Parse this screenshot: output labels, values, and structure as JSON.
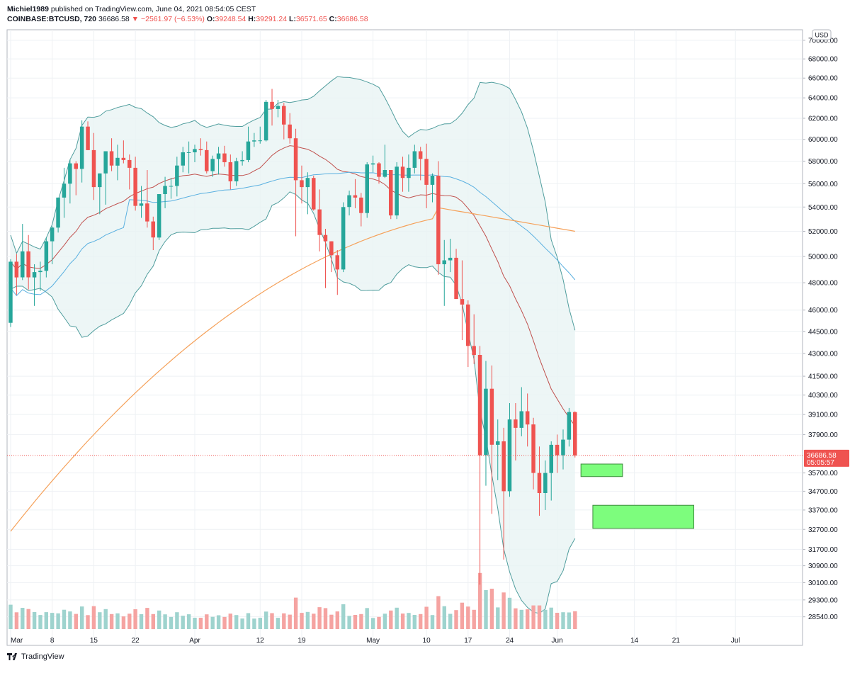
{
  "header": {
    "author": "Michiel1989",
    "published": "published on TradingView.com, June 04, 2021 08:54:05 CEST",
    "symbol": "COINBASE:BTCUSD, 720",
    "last": "36686.58",
    "change": "−2561.97 (−6.53%)",
    "o_label": "O:",
    "o_value": "39248.54",
    "h_label": "H:",
    "h_value": "39291.24",
    "l_label": "L:",
    "l_value": "36571.65",
    "c_label": "C:",
    "c_value": "36686.58"
  },
  "currency_badge": "USD",
  "price_tag": {
    "price": "36686.58",
    "countdown": "05:05:57"
  },
  "branding": "TradingView",
  "colors": {
    "up": "#26a69a",
    "down": "#ef5350",
    "bb": "#4f9d9d",
    "bb_fill": "#e8f4f4",
    "ma_fast": "#c0504d",
    "ma_mid": "#5ab0e0",
    "ma_slow": "#f5a15a",
    "zone": "#7dfd7d",
    "zone_border": "#3c8b3c"
  },
  "chart_data": {
    "type": "candlestick",
    "symbol": "COINBASE:BTCUSD",
    "timeframe": "720",
    "x_tick_labels": [
      "Mar",
      "8",
      "15",
      "22",
      "Apr",
      "12",
      "19",
      "May",
      "10",
      "17",
      "24",
      "Jun",
      "14",
      "21",
      "Jul"
    ],
    "y_tick_labels": [
      "70000.00",
      "68000.00",
      "66000.00",
      "64000.00",
      "62000.00",
      "60000.00",
      "58000.00",
      "56000.00",
      "54000.00",
      "52000.00",
      "50000.00",
      "48000.00",
      "46000.00",
      "44500.00",
      "43000.00",
      "41500.00",
      "40300.00",
      "39100.00",
      "37900.00",
      "36686.58",
      "35700.00",
      "34700.00",
      "33700.00",
      "32700.00",
      "31700.00",
      "30900.00",
      "30100.00",
      "29300.00",
      "28540.00"
    ],
    "ylim": [
      28000,
      71000
    ],
    "y_scale": "log",
    "last_price": 36686.58,
    "candles": [
      {
        "date": "2021-03-01",
        "o": 45100,
        "h": 49800,
        "l": 44800,
        "c": 49600
      },
      {
        "date": "2021-03-02",
        "o": 49600,
        "h": 50200,
        "l": 47100,
        "c": 48400
      },
      {
        "date": "2021-03-03",
        "o": 48400,
        "h": 52600,
        "l": 48200,
        "c": 50400
      },
      {
        "date": "2021-03-04",
        "o": 50400,
        "h": 51700,
        "l": 47500,
        "c": 48400
      },
      {
        "date": "2021-03-05",
        "o": 48400,
        "h": 49400,
        "l": 46300,
        "c": 48800
      },
      {
        "date": "2021-03-06",
        "o": 48800,
        "h": 49600,
        "l": 47400,
        "c": 48900
      },
      {
        "date": "2021-03-07",
        "o": 48900,
        "h": 51500,
        "l": 48400,
        "c": 51200
      },
      {
        "date": "2021-03-08",
        "o": 51200,
        "h": 52400,
        "l": 49400,
        "c": 52300
      },
      {
        "date": "2021-03-09",
        "o": 52300,
        "h": 54800,
        "l": 51900,
        "c": 54800
      },
      {
        "date": "2021-03-10",
        "o": 54800,
        "h": 57400,
        "l": 53100,
        "c": 56000
      },
      {
        "date": "2021-03-11",
        "o": 56000,
        "h": 58100,
        "l": 54300,
        "c": 57800
      },
      {
        "date": "2021-03-12",
        "o": 57800,
        "h": 58000,
        "l": 55000,
        "c": 57300
      },
      {
        "date": "2021-03-13",
        "o": 57300,
        "h": 61800,
        "l": 56100,
        "c": 61200
      },
      {
        "date": "2021-03-14",
        "o": 61200,
        "h": 61700,
        "l": 59000,
        "c": 59000
      },
      {
        "date": "2021-03-15",
        "o": 59000,
        "h": 60600,
        "l": 54600,
        "c": 55700
      },
      {
        "date": "2021-03-16",
        "o": 55700,
        "h": 56900,
        "l": 53400,
        "c": 56900
      },
      {
        "date": "2021-03-17",
        "o": 56900,
        "h": 58900,
        "l": 54200,
        "c": 58900
      },
      {
        "date": "2021-03-18",
        "o": 58900,
        "h": 60100,
        "l": 57100,
        "c": 57600
      },
      {
        "date": "2021-03-19",
        "o": 57600,
        "h": 59500,
        "l": 56300,
        "c": 58300
      },
      {
        "date": "2021-03-20",
        "o": 58300,
        "h": 59900,
        "l": 57800,
        "c": 58100
      },
      {
        "date": "2021-03-21",
        "o": 58100,
        "h": 58600,
        "l": 55500,
        "c": 57400
      },
      {
        "date": "2021-03-22",
        "o": 57400,
        "h": 58400,
        "l": 53700,
        "c": 54100
      },
      {
        "date": "2021-03-23",
        "o": 54100,
        "h": 55800,
        "l": 53100,
        "c": 54300
      },
      {
        "date": "2021-03-24",
        "o": 54300,
        "h": 57200,
        "l": 52300,
        "c": 52800
      },
      {
        "date": "2021-03-25",
        "o": 52800,
        "h": 53200,
        "l": 50500,
        "c": 51500
      },
      {
        "date": "2021-03-26",
        "o": 51500,
        "h": 55100,
        "l": 51300,
        "c": 55100
      },
      {
        "date": "2021-03-27",
        "o": 55100,
        "h": 56600,
        "l": 53900,
        "c": 55800
      },
      {
        "date": "2021-03-28",
        "o": 55800,
        "h": 56500,
        "l": 54700,
        "c": 55800
      },
      {
        "date": "2021-03-29",
        "o": 55800,
        "h": 58400,
        "l": 54900,
        "c": 57600
      },
      {
        "date": "2021-03-30",
        "o": 57600,
        "h": 59300,
        "l": 57000,
        "c": 58800
      },
      {
        "date": "2021-03-31",
        "o": 58800,
        "h": 59800,
        "l": 56900,
        "c": 58800
      },
      {
        "date": "2021-04-01",
        "o": 58800,
        "h": 59500,
        "l": 57900,
        "c": 59100
      },
      {
        "date": "2021-04-02",
        "o": 59100,
        "h": 60100,
        "l": 58500,
        "c": 59000
      },
      {
        "date": "2021-04-03",
        "o": 59000,
        "h": 59800,
        "l": 56900,
        "c": 57100
      },
      {
        "date": "2021-04-04",
        "o": 57100,
        "h": 58500,
        "l": 56600,
        "c": 58200
      },
      {
        "date": "2021-04-05",
        "o": 58200,
        "h": 59300,
        "l": 56800,
        "c": 58700
      },
      {
        "date": "2021-04-06",
        "o": 58700,
        "h": 59400,
        "l": 57500,
        "c": 57900
      },
      {
        "date": "2021-04-07",
        "o": 57900,
        "h": 58600,
        "l": 55500,
        "c": 56200
      },
      {
        "date": "2021-04-08",
        "o": 56200,
        "h": 58300,
        "l": 55800,
        "c": 58000
      },
      {
        "date": "2021-04-09",
        "o": 58000,
        "h": 58900,
        "l": 57600,
        "c": 58100
      },
      {
        "date": "2021-04-10",
        "o": 58100,
        "h": 61200,
        "l": 57900,
        "c": 59800
      },
      {
        "date": "2021-04-11",
        "o": 59800,
        "h": 60600,
        "l": 59300,
        "c": 59900
      },
      {
        "date": "2021-04-12",
        "o": 59900,
        "h": 61200,
        "l": 59600,
        "c": 59900
      },
      {
        "date": "2021-04-13",
        "o": 59900,
        "h": 63800,
        "l": 59800,
        "c": 63600
      },
      {
        "date": "2021-04-14",
        "o": 63600,
        "h": 64900,
        "l": 61300,
        "c": 62900
      },
      {
        "date": "2021-04-15",
        "o": 62900,
        "h": 63800,
        "l": 62100,
        "c": 63200
      },
      {
        "date": "2021-04-16",
        "o": 63200,
        "h": 63500,
        "l": 60000,
        "c": 61400
      },
      {
        "date": "2021-04-17",
        "o": 61400,
        "h": 62500,
        "l": 59600,
        "c": 60100
      },
      {
        "date": "2021-04-18",
        "o": 60100,
        "h": 61000,
        "l": 51600,
        "c": 56300
      },
      {
        "date": "2021-04-19",
        "o": 56300,
        "h": 57600,
        "l": 54300,
        "c": 55700
      },
      {
        "date": "2021-04-20",
        "o": 55700,
        "h": 57000,
        "l": 53400,
        "c": 56500
      },
      {
        "date": "2021-04-21",
        "o": 56500,
        "h": 56700,
        "l": 53700,
        "c": 53800
      },
      {
        "date": "2021-04-22",
        "o": 53800,
        "h": 55500,
        "l": 50400,
        "c": 51700
      },
      {
        "date": "2021-04-23",
        "o": 51700,
        "h": 52200,
        "l": 47600,
        "c": 51200
      },
      {
        "date": "2021-04-24",
        "o": 51200,
        "h": 51200,
        "l": 48800,
        "c": 50100
      },
      {
        "date": "2021-04-25",
        "o": 50100,
        "h": 50500,
        "l": 47100,
        "c": 49000
      },
      {
        "date": "2021-04-26",
        "o": 49000,
        "h": 54400,
        "l": 48800,
        "c": 54000
      },
      {
        "date": "2021-04-27",
        "o": 54000,
        "h": 55400,
        "l": 53300,
        "c": 55000
      },
      {
        "date": "2021-04-28",
        "o": 55000,
        "h": 56400,
        "l": 53900,
        "c": 54800
      },
      {
        "date": "2021-04-29",
        "o": 54800,
        "h": 55200,
        "l": 52400,
        "c": 53500
      },
      {
        "date": "2021-04-30",
        "o": 53500,
        "h": 57900,
        "l": 53100,
        "c": 57700
      },
      {
        "date": "2021-05-01",
        "o": 57700,
        "h": 58500,
        "l": 57000,
        "c": 57800
      },
      {
        "date": "2021-05-02",
        "o": 57800,
        "h": 57900,
        "l": 56000,
        "c": 56600
      },
      {
        "date": "2021-05-03",
        "o": 56600,
        "h": 59500,
        "l": 56500,
        "c": 57200
      },
      {
        "date": "2021-05-04",
        "o": 57200,
        "h": 57200,
        "l": 53000,
        "c": 53300
      },
      {
        "date": "2021-05-05",
        "o": 53300,
        "h": 57900,
        "l": 53000,
        "c": 57500
      },
      {
        "date": "2021-05-06",
        "o": 57500,
        "h": 58400,
        "l": 55300,
        "c": 56500
      },
      {
        "date": "2021-05-07",
        "o": 56500,
        "h": 58600,
        "l": 55300,
        "c": 57400
      },
      {
        "date": "2021-05-08",
        "o": 57400,
        "h": 59500,
        "l": 56900,
        "c": 58900
      },
      {
        "date": "2021-05-09",
        "o": 58900,
        "h": 59300,
        "l": 56300,
        "c": 58200
      },
      {
        "date": "2021-05-10",
        "o": 58200,
        "h": 59600,
        "l": 53900,
        "c": 55900
      },
      {
        "date": "2021-05-11",
        "o": 55900,
        "h": 56900,
        "l": 54400,
        "c": 56700
      },
      {
        "date": "2021-05-12",
        "o": 56700,
        "h": 58000,
        "l": 48600,
        "c": 49400
      },
      {
        "date": "2021-05-13",
        "o": 49400,
        "h": 51300,
        "l": 46300,
        "c": 49700
      },
      {
        "date": "2021-05-14",
        "o": 49700,
        "h": 51400,
        "l": 48800,
        "c": 49900
      },
      {
        "date": "2021-05-15",
        "o": 49900,
        "h": 50600,
        "l": 46800,
        "c": 46800
      },
      {
        "date": "2021-05-16",
        "o": 46800,
        "h": 49700,
        "l": 43900,
        "c": 46400
      },
      {
        "date": "2021-05-17",
        "o": 46400,
        "h": 46700,
        "l": 42100,
        "c": 43500
      },
      {
        "date": "2021-05-18",
        "o": 43500,
        "h": 45700,
        "l": 42300,
        "c": 42900
      },
      {
        "date": "2021-05-19",
        "o": 42900,
        "h": 43500,
        "l": 30000,
        "c": 36700
      },
      {
        "date": "2021-05-20",
        "o": 36700,
        "h": 42500,
        "l": 35000,
        "c": 40700
      },
      {
        "date": "2021-05-21",
        "o": 40700,
        "h": 42200,
        "l": 33500,
        "c": 37300
      },
      {
        "date": "2021-05-22",
        "o": 37300,
        "h": 38800,
        "l": 35300,
        "c": 37500
      },
      {
        "date": "2021-05-23",
        "o": 37500,
        "h": 38300,
        "l": 31200,
        "c": 34700
      },
      {
        "date": "2021-05-24",
        "o": 34700,
        "h": 39800,
        "l": 34400,
        "c": 38800
      },
      {
        "date": "2021-05-25",
        "o": 38800,
        "h": 39800,
        "l": 36400,
        "c": 38300
      },
      {
        "date": "2021-05-26",
        "o": 38300,
        "h": 40800,
        "l": 37800,
        "c": 39300
      },
      {
        "date": "2021-05-27",
        "o": 39300,
        "h": 40400,
        "l": 37200,
        "c": 38500
      },
      {
        "date": "2021-05-28",
        "o": 38500,
        "h": 38900,
        "l": 34800,
        "c": 35700
      },
      {
        "date": "2021-05-29",
        "o": 35700,
        "h": 37200,
        "l": 33400,
        "c": 34600
      },
      {
        "date": "2021-05-30",
        "o": 34600,
        "h": 36400,
        "l": 33700,
        "c": 35700
      },
      {
        "date": "2021-05-31",
        "o": 35700,
        "h": 37500,
        "l": 34200,
        "c": 37300
      },
      {
        "date": "2021-06-01",
        "o": 37300,
        "h": 37900,
        "l": 35700,
        "c": 36700
      },
      {
        "date": "2021-06-02",
        "o": 36700,
        "h": 38200,
        "l": 35900,
        "c": 37600
      },
      {
        "date": "2021-06-03",
        "o": 37600,
        "h": 39500,
        "l": 37200,
        "c": 39250
      },
      {
        "date": "2021-06-04",
        "o": 39248.54,
        "h": 39291.24,
        "l": 36571.65,
        "c": 36686.58
      }
    ],
    "zones": [
      {
        "y_top": 36200,
        "y_bottom": 35500,
        "x_start": "2021-06-05",
        "x_end": "2021-06-12"
      },
      {
        "y_top": 33950,
        "y_bottom": 32750,
        "x_start": "2021-06-07",
        "x_end": "2021-06-24"
      }
    ]
  }
}
